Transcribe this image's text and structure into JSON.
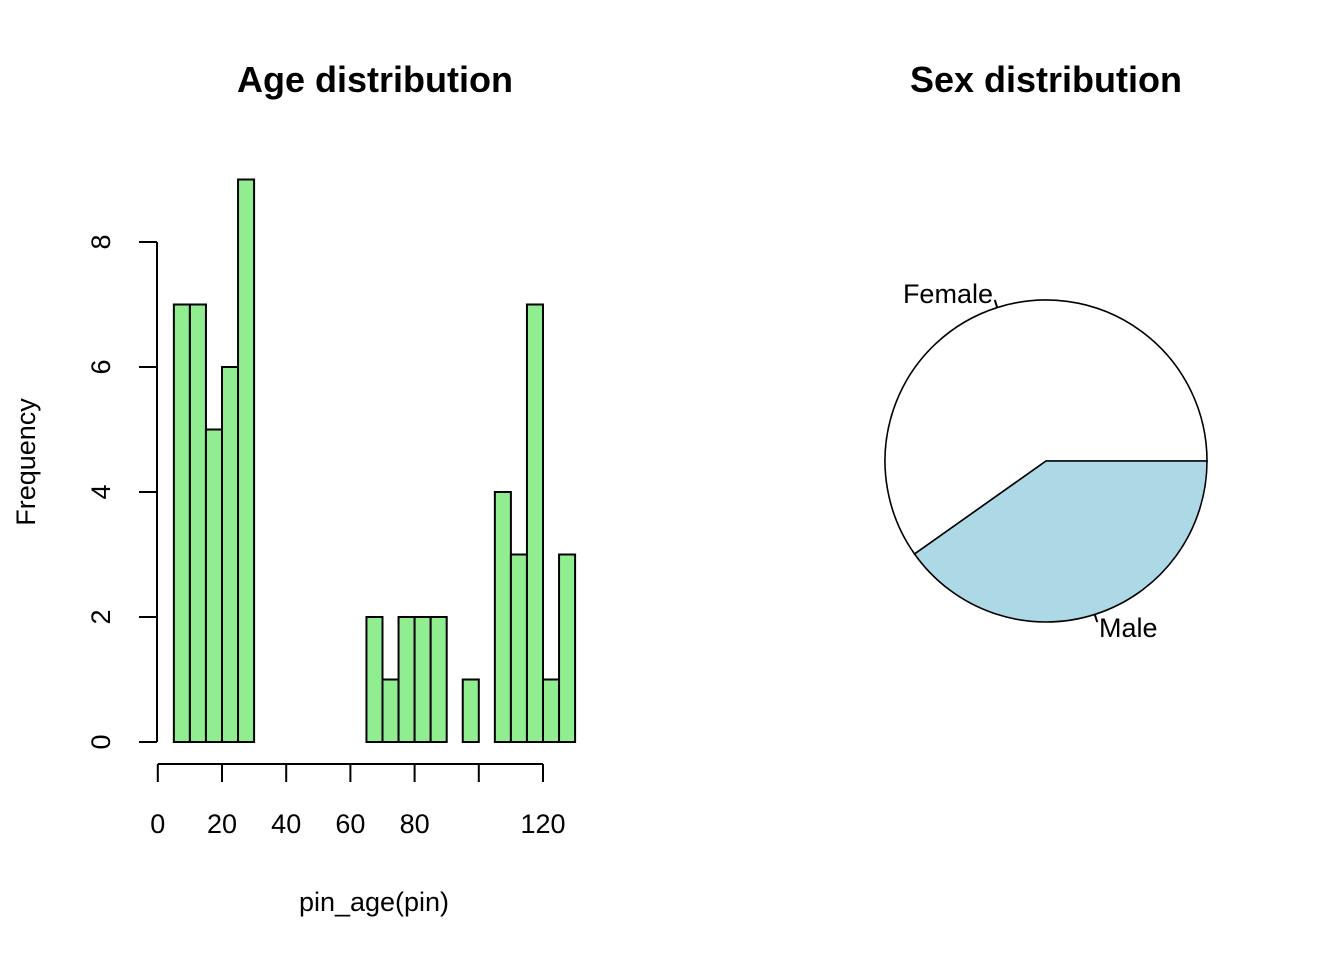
{
  "chart_data": [
    {
      "type": "bar",
      "title": "Age distribution",
      "xlabel": "pin_age(pin)",
      "ylabel": "Frequency",
      "bin_width": 5,
      "x": [
        5,
        10,
        15,
        20,
        25,
        30,
        35,
        40,
        45,
        50,
        55,
        60,
        65,
        70,
        75,
        80,
        85,
        90,
        95,
        100,
        105,
        110,
        115,
        120,
        125
      ],
      "values": [
        7,
        7,
        5,
        6,
        9,
        0,
        0,
        0,
        0,
        0,
        0,
        0,
        2,
        1,
        2,
        2,
        2,
        0,
        1,
        0,
        4,
        3,
        7,
        1,
        3
      ],
      "xlim": [
        0,
        130
      ],
      "ylim": [
        0,
        9
      ],
      "x_ticks": [
        0,
        20,
        40,
        60,
        80,
        100,
        120
      ],
      "x_tick_labels": [
        "0",
        "20",
        "40",
        "60",
        "80",
        "",
        "120"
      ],
      "y_ticks": [
        0,
        2,
        4,
        6,
        8
      ],
      "y_tick_labels": [
        "0",
        "2",
        "4",
        "6",
        "8"
      ],
      "grid": false,
      "colors": {
        "bar": "#90ee90"
      }
    },
    {
      "type": "pie",
      "title": "Sex distribution",
      "labels": [
        "Female",
        "Male"
      ],
      "values": [
        0.598,
        0.402
      ],
      "colors": [
        "#ffffff",
        "#add8e6"
      ]
    }
  ]
}
